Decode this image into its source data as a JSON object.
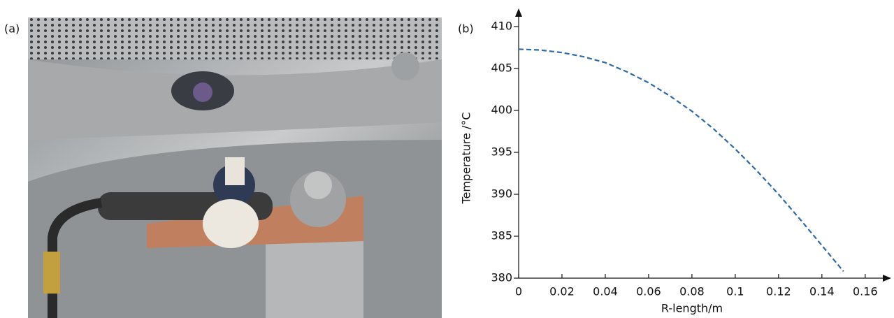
{
  "panel_a": {
    "label": "(a)"
  },
  "chart_data": {
    "type": "line",
    "panel_label": "(b)",
    "xlabel": "R-length/m",
    "ylabel": "Temperature /°C",
    "x": [
      0,
      0.01,
      0.02,
      0.03,
      0.04,
      0.05,
      0.06,
      0.07,
      0.08,
      0.09,
      0.1,
      0.11,
      0.12,
      0.13,
      0.14,
      0.15
    ],
    "series": [
      {
        "color": "#2e6aa6",
        "dashed": true,
        "values": [
          407.3,
          407.2,
          406.9,
          406.4,
          405.7,
          404.6,
          403.3,
          401.7,
          399.9,
          397.8,
          395.4,
          392.8,
          390.0,
          387.0,
          383.9,
          380.8
        ]
      }
    ],
    "xlim": [
      0,
      0.172
    ],
    "ylim": [
      380,
      412
    ],
    "xticks": [
      0,
      0.02,
      0.04,
      0.06,
      0.08,
      0.1,
      0.12,
      0.14,
      0.16
    ],
    "yticks": [
      380,
      385,
      390,
      395,
      400,
      405,
      410
    ]
  }
}
